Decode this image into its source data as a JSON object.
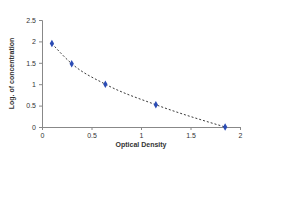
{
  "chart_data": {
    "type": "line",
    "x_label": "Optical Density",
    "y_label": "Log. of concentration",
    "x": [
      0.1,
      0.3,
      0.64,
      1.15,
      1.85
    ],
    "values": [
      1.95,
      1.48,
      1.0,
      0.52,
      0.0
    ],
    "color": "#2b4cb5",
    "marker": "diamond",
    "line_style": "dashed",
    "xlim": [
      0,
      2
    ],
    "ylim": [
      0,
      2.5
    ],
    "xticks": [
      0,
      0.5,
      1,
      1.5,
      2
    ],
    "yticks": [
      0,
      0.5,
      1,
      1.5,
      2,
      2.5
    ],
    "grid": false
  }
}
